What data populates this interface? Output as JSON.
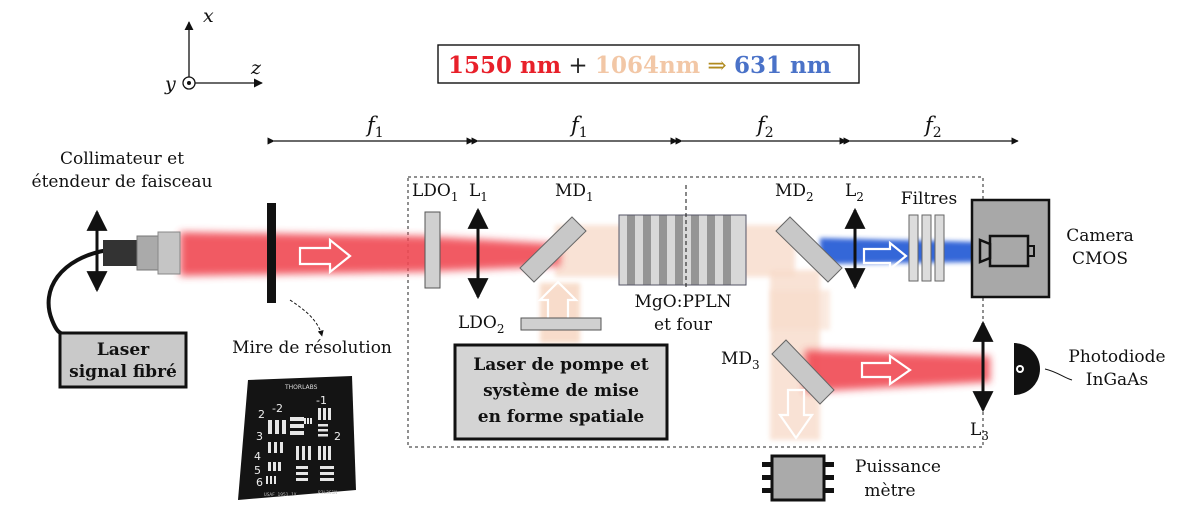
{
  "axes": {
    "x": "x",
    "y": "y",
    "z": "z"
  },
  "equation": {
    "signal": "1550 nm",
    "plus": "+",
    "pump": "1064nm",
    "arrow": "⇒",
    "output": "631 nm",
    "colors": {
      "signal": "#e8202a",
      "pump": "#f2c7a6",
      "output": "#4a72c8",
      "arrow": "#b08a1e"
    }
  },
  "focal": [
    {
      "symbol": "f",
      "sub": "1"
    },
    {
      "symbol": "f",
      "sub": "1"
    },
    {
      "symbol": "f",
      "sub": "2"
    },
    {
      "symbol": "f",
      "sub": "2"
    }
  ],
  "labels": {
    "collimator_line1": "Collimateur et",
    "collimator_line2": "étendeur de faisceau",
    "laser_signal_line1": "Laser",
    "laser_signal_line2": "signal fibré",
    "mire": "Mire de résolution",
    "ldo1": "LDO",
    "ldo1_sub": "1",
    "l1": "L",
    "l1_sub": "1",
    "md1": "MD",
    "md1_sub": "1",
    "ldo2": "LDO",
    "ldo2_sub": "2",
    "crystal_line1": "MgO:PPLN",
    "crystal_line2": "et four",
    "pump_line1": "Laser de pompe et",
    "pump_line2": "système de mise",
    "pump_line3": "en forme spatiale",
    "md2": "MD",
    "md2_sub": "2",
    "l2": "L",
    "l2_sub": "2",
    "filtres": "Filtres",
    "camera_line1": "Camera",
    "camera_line2": "CMOS",
    "md3": "MD",
    "md3_sub": "3",
    "l3": "L",
    "l3_sub": "3",
    "photodiode_line1": "Photodiode",
    "photodiode_line2": "InGaAs",
    "power_line1": "Puissance",
    "power_line2": "mètre"
  },
  "target_text": {
    "brand": "THORLABS",
    "minus2": "-2",
    "minus1": "-1",
    "two": "2",
    "three": "3",
    "four": "4",
    "five": "5",
    "six": "6",
    "footer_left": "USAF 1951 1X",
    "footer_right": "R3L3S1N"
  }
}
